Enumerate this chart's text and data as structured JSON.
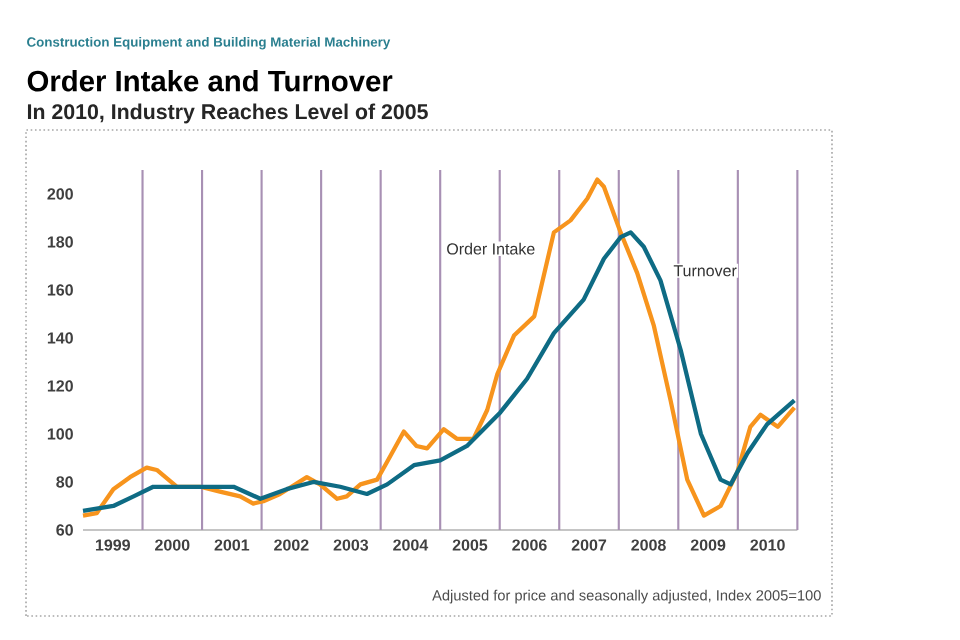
{
  "chart_data": {
    "type": "line",
    "title": "Order Intake and Turnover",
    "subtitle": "In 2010, Industry Reaches Level of 2005",
    "annotations": [
      "Construction Equipment and Building Material Machinery",
      "Adjusted for price and seasonally adjusted, Index 2005=100"
    ],
    "xlim": [
      1999,
      2011
    ],
    "ylim": [
      60,
      210
    ],
    "yticks": [
      60,
      80,
      100,
      120,
      140,
      160,
      180,
      200
    ],
    "xticks": [
      {
        "value": 1999.5,
        "label": "1999"
      },
      {
        "value": 2000.5,
        "label": "2000"
      },
      {
        "value": 2001.5,
        "label": "2001"
      },
      {
        "value": 2002.5,
        "label": "2002"
      },
      {
        "value": 2003.5,
        "label": "2003"
      },
      {
        "value": 2004.5,
        "label": "2004"
      },
      {
        "value": 2005.5,
        "label": "2005"
      },
      {
        "value": 2006.5,
        "label": "2006"
      },
      {
        "value": 2007.5,
        "label": "2007"
      },
      {
        "value": 2008.5,
        "label": "2008"
      },
      {
        "value": 2009.5,
        "label": "2009"
      },
      {
        "value": 2010.5,
        "label": "2010"
      },
      {
        "value": 2000,
        "label": null
      },
      {
        "value": 2001,
        "label": null
      },
      {
        "value": 2002,
        "label": null
      },
      {
        "value": 2003,
        "label": null
      },
      {
        "value": 2004,
        "label": null
      },
      {
        "value": 2005,
        "label": null
      },
      {
        "value": 2006,
        "label": null
      },
      {
        "value": 2007,
        "label": null
      },
      {
        "value": 2008,
        "label": null
      },
      {
        "value": 2009,
        "label": null
      },
      {
        "value": 2010,
        "label": null
      },
      {
        "value": 2011,
        "label": null
      }
    ],
    "grid": "x",
    "series": [
      {
        "name": "Order Intake",
        "color": "#f7941d",
        "x": [
          1999.0,
          1999.23,
          1999.51,
          1999.79,
          2000.07,
          2000.24,
          2000.58,
          2000.97,
          2001.3,
          2001.64,
          2001.86,
          2002.03,
          2002.31,
          2002.76,
          2002.98,
          2003.27,
          2003.43,
          2003.66,
          2003.94,
          2004.1,
          2004.39,
          2004.6,
          2004.78,
          2005.06,
          2005.28,
          2005.56,
          2005.79,
          2005.96,
          2006.24,
          2006.58,
          2006.91,
          2007.19,
          2007.47,
          2007.64,
          2007.75,
          2008.03,
          2008.31,
          2008.59,
          2008.87,
          2009.15,
          2009.43,
          2009.71,
          2009.99,
          2010.21,
          2010.38,
          2010.67,
          2010.95
        ],
        "values": [
          66,
          67,
          77,
          82,
          86,
          85,
          78,
          78,
          76,
          74,
          71,
          72,
          75,
          82,
          79,
          73,
          74,
          79,
          81,
          88,
          101,
          95,
          94,
          102,
          98,
          98,
          110,
          125,
          141,
          149,
          184,
          189,
          198,
          206,
          203,
          184,
          167,
          145,
          114,
          81,
          66,
          70,
          84,
          103,
          108,
          103,
          111
        ]
      },
      {
        "name": "Turnover",
        "color": "#0e6b84",
        "x": [
          1999.0,
          1999.51,
          1999.85,
          2000.18,
          2000.63,
          2001.08,
          2001.53,
          2001.98,
          2002.42,
          2002.87,
          2003.32,
          2003.77,
          2004.11,
          2004.56,
          2005.0,
          2005.45,
          2006.01,
          2006.46,
          2006.91,
          2007.41,
          2007.75,
          2008.03,
          2008.2,
          2008.42,
          2008.7,
          2009.04,
          2009.38,
          2009.71,
          2009.88,
          2010.16,
          2010.49,
          2010.95
        ],
        "values": [
          68,
          70,
          74,
          78,
          78,
          78,
          78,
          73,
          77,
          80,
          78,
          75,
          79,
          87,
          89,
          95,
          109,
          123,
          142,
          156,
          173,
          182,
          184,
          178,
          164,
          135,
          100,
          81,
          79,
          92,
          104,
          114
        ]
      }
    ]
  }
}
